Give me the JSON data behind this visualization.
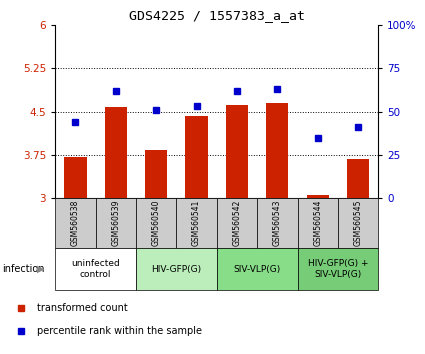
{
  "title": "GDS4225 / 1557383_a_at",
  "samples": [
    "GSM560538",
    "GSM560539",
    "GSM560540",
    "GSM560541",
    "GSM560542",
    "GSM560543",
    "GSM560544",
    "GSM560545"
  ],
  "bar_values": [
    3.72,
    4.58,
    3.84,
    4.43,
    4.62,
    4.65,
    3.06,
    3.68
  ],
  "point_values": [
    44,
    62,
    51,
    53,
    62,
    63,
    35,
    41
  ],
  "groups": [
    {
      "label": "uninfected\ncontrol",
      "start": 0,
      "end": 2,
      "color": "#ffffff"
    },
    {
      "label": "HIV-GFP(G)",
      "start": 2,
      "end": 4,
      "color": "#bbeebb"
    },
    {
      "label": "SIV-VLP(G)",
      "start": 4,
      "end": 6,
      "color": "#88dd88"
    },
    {
      "label": "HIV-GFP(G) +\nSIV-VLP(G)",
      "start": 6,
      "end": 8,
      "color": "#77cc77"
    }
  ],
  "ylim_left": [
    3,
    6
  ],
  "ylim_right": [
    0,
    100
  ],
  "yticks_left": [
    3,
    3.75,
    4.5,
    5.25,
    6
  ],
  "ytick_labels_left": [
    "3",
    "3.75",
    "4.5",
    "5.25",
    "6"
  ],
  "yticks_right": [
    0,
    25,
    50,
    75,
    100
  ],
  "ytick_labels_right": [
    "0",
    "25",
    "50",
    "75",
    "100%"
  ],
  "bar_color": "#cc2200",
  "point_color": "#0000cc",
  "bar_bottom": 3,
  "infection_label": "infection",
  "legend_bar": "transformed count",
  "legend_point": "percentile rank within the sample",
  "sample_bg_color": "#cccccc",
  "tick_label_color_left": "#cc2200",
  "tick_label_color_right": "#0000cc",
  "dotted_lines": [
    3.75,
    4.5,
    5.25
  ]
}
